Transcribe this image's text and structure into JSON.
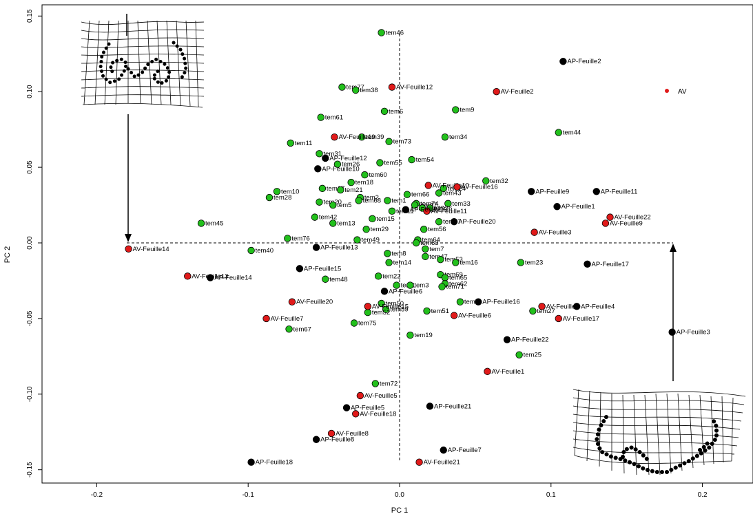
{
  "chart_data": {
    "type": "scatter",
    "xlabel": "PC 1",
    "ylabel": "PC 2",
    "xlim": [
      -0.24,
      0.23
    ],
    "ylim": [
      -0.155,
      0.15
    ],
    "x_ticks": [
      "-0.2",
      "-0.1",
      "0.0",
      "0.1",
      "0.2"
    ],
    "y_ticks": [
      "-0.15",
      "-0.10",
      "-0.05",
      "0.00",
      "0.05",
      "0.10",
      "0.15"
    ],
    "colors": {
      "tem": "#22c01c",
      "AV": "#e01a1a",
      "AP": "#000000"
    },
    "legend": {
      "label": "AV",
      "color": "#e01a1a"
    },
    "points": [
      {
        "label": "tem46",
        "x": -0.012,
        "y": 0.139,
        "group": "tem"
      },
      {
        "label": "tem77",
        "x": -0.038,
        "y": 0.103,
        "group": "tem"
      },
      {
        "label": "tem38",
        "x": -0.029,
        "y": 0.101,
        "group": "tem"
      },
      {
        "label": "tem6",
        "x": -0.01,
        "y": 0.087,
        "group": "tem"
      },
      {
        "label": "tem9",
        "x": 0.037,
        "y": 0.088,
        "group": "tem"
      },
      {
        "label": "tem61",
        "x": -0.052,
        "y": 0.083,
        "group": "tem"
      },
      {
        "label": "tem44",
        "x": 0.105,
        "y": 0.073,
        "group": "tem"
      },
      {
        "label": "tem34",
        "x": 0.03,
        "y": 0.07,
        "group": "tem"
      },
      {
        "label": "tem73",
        "x": -0.007,
        "y": 0.067,
        "group": "tem"
      },
      {
        "label": "tem39",
        "x": -0.025,
        "y": 0.07,
        "group": "tem"
      },
      {
        "label": "tem11",
        "x": -0.072,
        "y": 0.066,
        "group": "tem"
      },
      {
        "label": "tem31",
        "x": -0.053,
        "y": 0.059,
        "group": "tem"
      },
      {
        "label": "tem54",
        "x": 0.008,
        "y": 0.055,
        "group": "tem"
      },
      {
        "label": "tem55",
        "x": -0.013,
        "y": 0.053,
        "group": "tem"
      },
      {
        "label": "tem26",
        "x": -0.041,
        "y": 0.052,
        "group": "tem"
      },
      {
        "label": "tem60",
        "x": -0.023,
        "y": 0.045,
        "group": "tem"
      },
      {
        "label": "tem18",
        "x": -0.032,
        "y": 0.04,
        "group": "tem"
      },
      {
        "label": "tem32",
        "x": 0.057,
        "y": 0.041,
        "group": "tem"
      },
      {
        "label": "tem10",
        "x": -0.081,
        "y": 0.034,
        "group": "tem"
      },
      {
        "label": "tem28",
        "x": -0.086,
        "y": 0.03,
        "group": "tem"
      },
      {
        "label": "tem17",
        "x": -0.051,
        "y": 0.036,
        "group": "tem"
      },
      {
        "label": "tem21",
        "x": -0.039,
        "y": 0.035,
        "group": "tem"
      },
      {
        "label": "tem24",
        "x": 0.029,
        "y": 0.036,
        "group": "tem"
      },
      {
        "label": "tem43",
        "x": 0.026,
        "y": 0.033,
        "group": "tem"
      },
      {
        "label": "tem66",
        "x": 0.005,
        "y": 0.032,
        "group": "tem"
      },
      {
        "label": "tem2",
        "x": -0.026,
        "y": 0.03,
        "group": "tem"
      },
      {
        "label": "tem68",
        "x": -0.027,
        "y": 0.028,
        "group": "tem"
      },
      {
        "label": "tem1",
        "x": -0.008,
        "y": 0.028,
        "group": "tem"
      },
      {
        "label": "tem20",
        "x": -0.053,
        "y": 0.027,
        "group": "tem"
      },
      {
        "label": "tem5",
        "x": -0.044,
        "y": 0.025,
        "group": "tem"
      },
      {
        "label": "tem74",
        "x": 0.011,
        "y": 0.026,
        "group": "tem"
      },
      {
        "label": "tem47",
        "x": 0.01,
        "y": 0.025,
        "group": "tem"
      },
      {
        "label": "tem33",
        "x": 0.032,
        "y": 0.026,
        "group": "tem"
      },
      {
        "label": "tem36",
        "x": 0.02,
        "y": 0.023,
        "group": "tem"
      },
      {
        "label": "tem19",
        "x": 0.015,
        "y": 0.023,
        "group": "tem"
      },
      {
        "label": "tem11",
        "x": -0.005,
        "y": 0.021,
        "group": "tem"
      },
      {
        "label": "tem42",
        "x": -0.056,
        "y": 0.017,
        "group": "tem"
      },
      {
        "label": "tem15",
        "x": -0.018,
        "y": 0.016,
        "group": "tem"
      },
      {
        "label": "tem37",
        "x": 0.026,
        "y": 0.014,
        "group": "tem"
      },
      {
        "label": "tem45",
        "x": -0.131,
        "y": 0.013,
        "group": "tem"
      },
      {
        "label": "tem13",
        "x": -0.044,
        "y": 0.013,
        "group": "tem"
      },
      {
        "label": "tem29",
        "x": -0.022,
        "y": 0.009,
        "group": "tem"
      },
      {
        "label": "tem56",
        "x": 0.016,
        "y": 0.009,
        "group": "tem"
      },
      {
        "label": "tem76",
        "x": -0.074,
        "y": 0.003,
        "group": "tem"
      },
      {
        "label": "tem49",
        "x": -0.028,
        "y": 0.002,
        "group": "tem"
      },
      {
        "label": "tem64",
        "x": 0.012,
        "y": 0.002,
        "group": "tem"
      },
      {
        "label": "tem63",
        "x": 0.011,
        "y": 0.0,
        "group": "tem"
      },
      {
        "label": "tem40",
        "x": -0.098,
        "y": -0.005,
        "group": "tem"
      },
      {
        "label": "tem7",
        "x": 0.017,
        "y": -0.004,
        "group": "tem"
      },
      {
        "label": "tem8",
        "x": -0.008,
        "y": -0.007,
        "group": "tem"
      },
      {
        "label": "tem47",
        "x": 0.017,
        "y": -0.009,
        "group": "tem"
      },
      {
        "label": "tem53",
        "x": 0.027,
        "y": -0.011,
        "group": "tem"
      },
      {
        "label": "tem14",
        "x": -0.007,
        "y": -0.013,
        "group": "tem"
      },
      {
        "label": "tem16",
        "x": 0.037,
        "y": -0.013,
        "group": "tem"
      },
      {
        "label": "tem23",
        "x": 0.08,
        "y": -0.013,
        "group": "tem"
      },
      {
        "label": "tem22",
        "x": -0.014,
        "y": -0.022,
        "group": "tem"
      },
      {
        "label": "tem69",
        "x": 0.027,
        "y": -0.021,
        "group": "tem"
      },
      {
        "label": "tem65",
        "x": 0.03,
        "y": -0.023,
        "group": "tem"
      },
      {
        "label": "tem48",
        "x": -0.049,
        "y": -0.024,
        "group": "tem"
      },
      {
        "label": "tem62",
        "x": 0.03,
        "y": -0.027,
        "group": "tem"
      },
      {
        "label": "tem71",
        "x": 0.028,
        "y": -0.029,
        "group": "tem"
      },
      {
        "label": "tem1",
        "x": -0.002,
        "y": -0.028,
        "group": "tem"
      },
      {
        "label": "tem3",
        "x": 0.007,
        "y": -0.028,
        "group": "tem"
      },
      {
        "label": "tem4",
        "x": 0.04,
        "y": -0.039,
        "group": "tem"
      },
      {
        "label": "tem50",
        "x": -0.012,
        "y": -0.04,
        "group": "tem"
      },
      {
        "label": "tem59",
        "x": -0.009,
        "y": -0.044,
        "group": "tem"
      },
      {
        "label": "tem52",
        "x": -0.021,
        "y": -0.046,
        "group": "tem"
      },
      {
        "label": "tem51",
        "x": 0.018,
        "y": -0.045,
        "group": "tem"
      },
      {
        "label": "tem27",
        "x": 0.088,
        "y": -0.045,
        "group": "tem"
      },
      {
        "label": "tem75",
        "x": -0.03,
        "y": -0.053,
        "group": "tem"
      },
      {
        "label": "tem67",
        "x": -0.073,
        "y": -0.057,
        "group": "tem"
      },
      {
        "label": "tem19",
        "x": 0.007,
        "y": -0.061,
        "group": "tem"
      },
      {
        "label": "tem25",
        "x": 0.079,
        "y": -0.074,
        "group": "tem"
      },
      {
        "label": "tem72",
        "x": -0.016,
        "y": -0.093,
        "group": "tem"
      },
      {
        "label": "AV-Feuille12",
        "x": -0.005,
        "y": 0.103,
        "group": "AV"
      },
      {
        "label": "AV-Feuille2",
        "x": 0.064,
        "y": 0.1,
        "group": "AV"
      },
      {
        "label": "AV-Feuille19",
        "x": -0.043,
        "y": 0.07,
        "group": "AV"
      },
      {
        "label": "AV-Feuille10",
        "x": 0.019,
        "y": 0.038,
        "group": "AV"
      },
      {
        "label": "AV-Feuille16",
        "x": 0.038,
        "y": 0.037,
        "group": "AV"
      },
      {
        "label": "AV-Feuille11",
        "x": 0.018,
        "y": 0.021,
        "group": "AV"
      },
      {
        "label": "AV-Feuille22",
        "x": 0.139,
        "y": 0.017,
        "group": "AV"
      },
      {
        "label": "AV-Feuille9",
        "x": 0.136,
        "y": 0.013,
        "group": "AV"
      },
      {
        "label": "AV-Feuille3",
        "x": 0.089,
        "y": 0.007,
        "group": "AV"
      },
      {
        "label": "AV-Feuille14",
        "x": -0.179,
        "y": -0.004,
        "group": "AV"
      },
      {
        "label": "AV-Feuille13",
        "x": -0.14,
        "y": -0.022,
        "group": "AV"
      },
      {
        "label": "AV-Feuille20",
        "x": -0.071,
        "y": -0.039,
        "group": "AV"
      },
      {
        "label": "AV-Feuille15",
        "x": -0.021,
        "y": -0.042,
        "group": "AV"
      },
      {
        "label": "AV-Feuille4",
        "x": 0.094,
        "y": -0.042,
        "group": "AV"
      },
      {
        "label": "AV-Feuille6",
        "x": 0.036,
        "y": -0.048,
        "group": "AV"
      },
      {
        "label": "AV-Feuille17",
        "x": 0.105,
        "y": -0.05,
        "group": "AV"
      },
      {
        "label": "AV-Feuille7",
        "x": -0.088,
        "y": -0.05,
        "group": "AV"
      },
      {
        "label": "AV-Feuille1",
        "x": 0.058,
        "y": -0.085,
        "group": "AV"
      },
      {
        "label": "AV-Feuille5",
        "x": -0.026,
        "y": -0.101,
        "group": "AV"
      },
      {
        "label": "AV-Feuille18",
        "x": -0.029,
        "y": -0.113,
        "group": "AV"
      },
      {
        "label": "AV-Feuille8",
        "x": -0.045,
        "y": -0.126,
        "group": "AV"
      },
      {
        "label": "AV-Feuille21",
        "x": 0.013,
        "y": -0.145,
        "group": "AV"
      },
      {
        "label": "AP-Feuille2",
        "x": 0.108,
        "y": 0.12,
        "group": "AP"
      },
      {
        "label": "AP-Feuille12",
        "x": -0.049,
        "y": 0.056,
        "group": "AP"
      },
      {
        "label": "AP-Feuille10",
        "x": -0.054,
        "y": 0.049,
        "group": "AP"
      },
      {
        "label": "AP-Feuille9",
        "x": 0.087,
        "y": 0.034,
        "group": "AP"
      },
      {
        "label": "AP-Feuille11",
        "x": 0.13,
        "y": 0.034,
        "group": "AP"
      },
      {
        "label": "AP-Feuille1",
        "x": 0.104,
        "y": 0.024,
        "group": "AP"
      },
      {
        "label": "AP-Feuille20",
        "x": 0.036,
        "y": 0.014,
        "group": "AP"
      },
      {
        "label": "AP-Feuille19",
        "x": 0.004,
        "y": 0.022,
        "group": "AP"
      },
      {
        "label": "AP-Feuille13",
        "x": -0.055,
        "y": -0.003,
        "group": "AP"
      },
      {
        "label": "AP-Feuille15",
        "x": -0.066,
        "y": -0.017,
        "group": "AP"
      },
      {
        "label": "AP-Feuille17",
        "x": 0.124,
        "y": -0.014,
        "group": "AP"
      },
      {
        "label": "AP-Feuille14",
        "x": -0.125,
        "y": -0.023,
        "group": "AP"
      },
      {
        "label": "AP-Feuille6",
        "x": -0.01,
        "y": -0.032,
        "group": "AP"
      },
      {
        "label": "AP-Feuille16",
        "x": 0.052,
        "y": -0.039,
        "group": "AP"
      },
      {
        "label": "AP-Feuille4",
        "x": 0.117,
        "y": -0.042,
        "group": "AP"
      },
      {
        "label": "AP-Feuille3",
        "x": 0.18,
        "y": -0.059,
        "group": "AP"
      },
      {
        "label": "AP-Feuille22",
        "x": 0.071,
        "y": -0.064,
        "group": "AP"
      },
      {
        "label": "AP-Feuille21",
        "x": 0.02,
        "y": -0.108,
        "group": "AP"
      },
      {
        "label": "AP-Feuille5",
        "x": -0.035,
        "y": -0.109,
        "group": "AP"
      },
      {
        "label": "AP-Feuille8",
        "x": -0.055,
        "y": -0.13,
        "group": "AP"
      },
      {
        "label": "AP-Feuille7",
        "x": 0.029,
        "y": -0.137,
        "group": "AP"
      },
      {
        "label": "AP-Feuille18",
        "x": -0.098,
        "y": -0.145,
        "group": "AP"
      }
    ]
  }
}
